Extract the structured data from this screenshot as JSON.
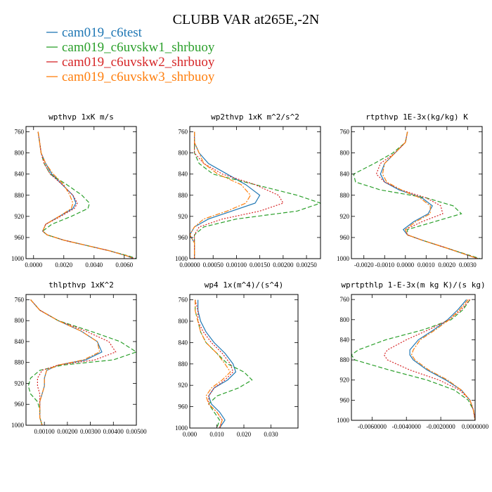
{
  "figure": {
    "title": "CLUBB VAR at265E,-2N",
    "legend": [
      {
        "label": "cam019_c6test",
        "color": "#1f77b4",
        "dash": "solid"
      },
      {
        "label": "cam019_c6uvskw1_shrbuoy",
        "color": "#2ca02c",
        "dash": "dashed"
      },
      {
        "label": "cam019_c6uvskw2_shrbuoy",
        "color": "#d62728",
        "dash": "dotted"
      },
      {
        "label": "cam019_c6uvskw3_shrbuoy",
        "color": "#ff7f0e",
        "dash": "dashdot"
      }
    ]
  },
  "chart_data": [
    {
      "type": "line",
      "title": "wpthvp  1xK m/s",
      "ylim": [
        1000,
        750
      ],
      "yticks": [
        "760",
        "800",
        "840",
        "880",
        "920",
        "960",
        "1000"
      ],
      "xlim": [
        -0.0005,
        0.0068
      ],
      "xticks": [
        {
          "v": 0.0,
          "label": "0.0000"
        },
        {
          "v": 0.002,
          "label": "0.0020"
        },
        {
          "v": 0.004,
          "label": "0.0040"
        },
        {
          "v": 0.006,
          "label": "0.0060"
        }
      ],
      "levels": [
        760,
        780,
        800,
        820,
        840,
        860,
        880,
        895,
        905,
        920,
        935,
        948,
        955,
        965,
        975,
        985,
        995,
        1000
      ],
      "series": [
        {
          "values": [
            0.0003,
            0.0004,
            0.0005,
            0.0008,
            0.0012,
            0.0019,
            0.0026,
            0.0028,
            0.0026,
            0.0017,
            0.0008,
            0.0006,
            0.0009,
            0.002,
            0.0035,
            0.005,
            0.0062,
            0.0066
          ]
        },
        {
          "values": [
            0.0003,
            0.0004,
            0.0005,
            0.0007,
            0.0011,
            0.0022,
            0.0032,
            0.0037,
            0.0036,
            0.0025,
            0.0012,
            0.0006,
            0.0009,
            0.002,
            0.0035,
            0.005,
            0.0063,
            0.0068
          ]
        },
        {
          "values": [
            0.0003,
            0.0004,
            0.0005,
            0.0007,
            0.0011,
            0.0019,
            0.0026,
            0.0029,
            0.0027,
            0.0018,
            0.0008,
            0.0006,
            0.0009,
            0.002,
            0.0035,
            0.005,
            0.0062,
            0.0067
          ]
        },
        {
          "values": [
            0.0003,
            0.0004,
            0.0005,
            0.0008,
            0.0013,
            0.002,
            0.0024,
            0.0026,
            0.0025,
            0.0017,
            0.0008,
            0.0006,
            0.0009,
            0.002,
            0.0035,
            0.005,
            0.0062,
            0.0066
          ]
        }
      ]
    },
    {
      "type": "line",
      "title": "wp2thvp  1xK m^2/s^2",
      "ylim": [
        1000,
        750
      ],
      "yticks": [
        "760",
        "800",
        "840",
        "880",
        "920",
        "960",
        "1000"
      ],
      "xlim": [
        0.0,
        0.0028
      ],
      "xticks": [
        {
          "v": 0.0,
          "label": "0.00000"
        },
        {
          "v": 0.0005,
          "label": "0.00050"
        },
        {
          "v": 0.001,
          "label": "0.00100"
        },
        {
          "v": 0.0015,
          "label": "0.00150"
        },
        {
          "v": 0.002,
          "label": "0.00200"
        },
        {
          "v": 0.0025,
          "label": "0.00250"
        }
      ],
      "levels": [
        760,
        780,
        800,
        820,
        840,
        860,
        880,
        895,
        910,
        925,
        940,
        955,
        970,
        985,
        1000
      ],
      "series": [
        {
          "values": [
            0.0001,
            0.0001,
            0.0002,
            0.0004,
            0.0008,
            0.0012,
            0.0015,
            0.0014,
            0.0009,
            0.0004,
            0.0001,
            0.0,
            0.0001,
            0.0001,
            0.0001
          ]
        },
        {
          "values": [
            0.0001,
            0.0001,
            0.0001,
            0.0002,
            0.0005,
            0.0014,
            0.0023,
            0.0028,
            0.0023,
            0.001,
            0.0003,
            0.0001,
            0.0001,
            0.0001,
            0.0001
          ]
        },
        {
          "values": [
            0.0001,
            0.0001,
            0.0001,
            0.0003,
            0.0007,
            0.0014,
            0.0019,
            0.002,
            0.0015,
            0.0007,
            0.0002,
            0.0001,
            0.0001,
            0.0001,
            0.0001
          ]
        },
        {
          "values": [
            0.0001,
            0.0001,
            0.0002,
            0.0003,
            0.0006,
            0.0011,
            0.0013,
            0.0012,
            0.0008,
            0.0003,
            0.0001,
            0.0,
            0.0001,
            0.0001,
            0.0001
          ]
        }
      ]
    },
    {
      "type": "line",
      "title": "rtpthvp  1E-3x(kg/kg) K",
      "ylim": [
        1000,
        750
      ],
      "yticks": [
        "760",
        "800",
        "840",
        "880",
        "920",
        "960",
        "1000"
      ],
      "xlim": [
        -0.0026,
        0.0037
      ],
      "xticks": [
        {
          "v": -0.002,
          "label": "-0.0020"
        },
        {
          "v": -0.001,
          "label": "-0.0010"
        },
        {
          "v": 0.0,
          "label": "0.0000"
        },
        {
          "v": 0.001,
          "label": "0.0010"
        },
        {
          "v": 0.002,
          "label": "0.0020"
        },
        {
          "v": 0.003,
          "label": "0.0030"
        }
      ],
      "levels": [
        760,
        780,
        800,
        820,
        840,
        855,
        870,
        885,
        900,
        915,
        930,
        945,
        955,
        965,
        980,
        1000
      ],
      "series": [
        {
          "values": [
            0.0001,
            0.0,
            -0.0005,
            -0.001,
            -0.0012,
            -0.001,
            -0.0003,
            0.0008,
            0.0013,
            0.0011,
            0.0004,
            -0.0001,
            0.0001,
            0.0008,
            0.002,
            0.0035
          ]
        },
        {
          "values": [
            0.0001,
            0.0,
            -0.0006,
            -0.0015,
            -0.0025,
            -0.0024,
            -0.0012,
            0.001,
            0.0023,
            0.0027,
            0.0014,
            0.0001,
            0.0001,
            0.0008,
            0.002,
            0.0036
          ]
        },
        {
          "values": [
            0.0001,
            0.0,
            -0.0005,
            -0.0012,
            -0.0014,
            -0.001,
            -0.0002,
            0.001,
            0.0017,
            0.0018,
            0.0008,
            0.0,
            0.0001,
            0.0008,
            0.002,
            0.0035
          ]
        },
        {
          "values": [
            0.0001,
            0.0,
            -0.0005,
            -0.001,
            -0.0011,
            -0.0009,
            -0.0002,
            0.0007,
            0.0012,
            0.0012,
            0.0005,
            0.0,
            0.0001,
            0.0008,
            0.002,
            0.0035
          ]
        }
      ]
    },
    {
      "type": "line",
      "title": "thlpthvp  1xK^2",
      "ylim": [
        1000,
        750
      ],
      "yticks": [
        "760",
        "800",
        "840",
        "880",
        "920",
        "960",
        "1000"
      ],
      "xlim": [
        0.0002,
        0.005
      ],
      "xticks": [
        {
          "v": 0.001,
          "label": "0.00100"
        },
        {
          "v": 0.002,
          "label": "0.00200"
        },
        {
          "v": 0.003,
          "label": "0.00300"
        },
        {
          "v": 0.004,
          "label": "0.00400"
        },
        {
          "v": 0.005,
          "label": "0.00500"
        }
      ],
      "levels": [
        760,
        780,
        800,
        820,
        840,
        860,
        875,
        885,
        895,
        910,
        925,
        940,
        955,
        970,
        985,
        1000
      ],
      "series": [
        {
          "values": [
            0.0004,
            0.0008,
            0.0016,
            0.0026,
            0.0033,
            0.0035,
            0.0028,
            0.0016,
            0.0011,
            0.001,
            0.001,
            0.0009,
            0.0008,
            0.0008,
            0.0008,
            0.0009
          ]
        },
        {
          "values": [
            0.0004,
            0.0008,
            0.0016,
            0.003,
            0.0043,
            0.005,
            0.004,
            0.0018,
            0.0008,
            0.0004,
            0.0003,
            0.0004,
            0.0007,
            0.0008,
            0.0008,
            0.0009
          ]
        },
        {
          "values": [
            0.0004,
            0.0008,
            0.0016,
            0.0028,
            0.0038,
            0.0041,
            0.0032,
            0.0016,
            0.0009,
            0.0007,
            0.0007,
            0.0008,
            0.0008,
            0.0008,
            0.0008,
            0.0009
          ]
        },
        {
          "values": [
            0.0004,
            0.0008,
            0.0016,
            0.0026,
            0.0033,
            0.0034,
            0.0027,
            0.0016,
            0.0011,
            0.001,
            0.001,
            0.0009,
            0.0008,
            0.0008,
            0.0008,
            0.0009
          ]
        }
      ]
    },
    {
      "type": "line",
      "title": "wp4  1x(m^4)/(s^4)",
      "ylim": [
        1000,
        750
      ],
      "yticks": [
        "760",
        "800",
        "840",
        "880",
        "920",
        "960",
        "1000"
      ],
      "xlim": [
        0.0,
        0.04
      ],
      "xticks": [
        {
          "v": 0.0,
          "label": "0.000"
        },
        {
          "v": 0.01,
          "label": "0.010"
        },
        {
          "v": 0.02,
          "label": "0.020"
        },
        {
          "v": 0.03,
          "label": "0.030"
        }
      ],
      "levels": [
        760,
        780,
        800,
        820,
        840,
        860,
        880,
        895,
        910,
        925,
        940,
        955,
        970,
        985,
        1000
      ],
      "series": [
        {
          "values": [
            0.003,
            0.003,
            0.004,
            0.006,
            0.009,
            0.013,
            0.016,
            0.017,
            0.014,
            0.009,
            0.007,
            0.008,
            0.011,
            0.013,
            0.011
          ]
        },
        {
          "values": [
            0.002,
            0.002,
            0.003,
            0.004,
            0.006,
            0.01,
            0.014,
            0.02,
            0.023,
            0.018,
            0.01,
            0.007,
            0.009,
            0.011,
            0.01
          ]
        },
        {
          "values": [
            0.002,
            0.003,
            0.003,
            0.005,
            0.008,
            0.012,
            0.015,
            0.016,
            0.013,
            0.009,
            0.007,
            0.007,
            0.01,
            0.012,
            0.011
          ]
        },
        {
          "values": [
            0.002,
            0.002,
            0.003,
            0.004,
            0.006,
            0.01,
            0.013,
            0.015,
            0.012,
            0.008,
            0.006,
            0.007,
            0.01,
            0.012,
            0.011
          ]
        }
      ]
    },
    {
      "type": "line",
      "title": "wprtpthlp  1-E-3x(m kg K)/(s kg)",
      "ylim": [
        1000,
        750
      ],
      "yticks": [
        "760",
        "800",
        "840",
        "880",
        "920",
        "960",
        "1000"
      ],
      "xlim": [
        -0.0072,
        0.0
      ],
      "xticks": [
        {
          "v": -0.006,
          "label": "-0.0060000"
        },
        {
          "v": -0.004,
          "label": "-0.0040000"
        },
        {
          "v": -0.002,
          "label": "-0.0020000"
        },
        {
          "v": 0.0,
          "label": "0.0000000"
        }
      ],
      "levels": [
        760,
        780,
        800,
        820,
        840,
        860,
        870,
        880,
        900,
        920,
        940,
        960,
        980,
        1000
      ],
      "series": [
        {
          "values": [
            -0.0005,
            -0.001,
            -0.0016,
            -0.0024,
            -0.0033,
            -0.0038,
            -0.0038,
            -0.0036,
            -0.0028,
            -0.0017,
            -0.0008,
            -0.0003,
            -0.0001,
            0.0
          ]
        },
        {
          "values": [
            -0.0003,
            -0.0007,
            -0.0014,
            -0.003,
            -0.0052,
            -0.0068,
            -0.0072,
            -0.007,
            -0.005,
            -0.0028,
            -0.0012,
            -0.0004,
            -0.0001,
            0.0
          ]
        },
        {
          "values": [
            -0.0003,
            -0.0008,
            -0.0015,
            -0.0027,
            -0.004,
            -0.0051,
            -0.0053,
            -0.0051,
            -0.0038,
            -0.0021,
            -0.0009,
            -0.0003,
            -0.0001,
            0.0
          ]
        },
        {
          "values": [
            -0.0004,
            -0.0009,
            -0.0015,
            -0.0023,
            -0.0032,
            -0.0036,
            -0.0037,
            -0.0035,
            -0.0027,
            -0.0016,
            -0.0008,
            -0.0003,
            -0.0001,
            0.0
          ]
        }
      ]
    }
  ]
}
